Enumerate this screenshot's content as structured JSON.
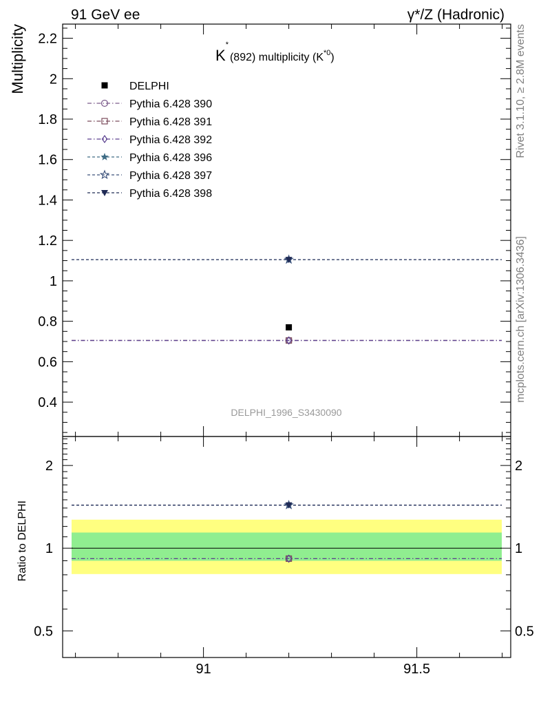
{
  "header": {
    "left": "91 GeV ee",
    "right": "γ*/Z (Hadronic)"
  },
  "side_notes": {
    "rivet": "Rivet 3.1.10, ≥ 2.8M events",
    "mcplots": "mcplots.cern.ch [arXiv:1306.3436]"
  },
  "watermark": "DELPHI_1996_S3430090",
  "chart_data": [
    {
      "type": "scatter",
      "title_main": "K",
      "title_sup": "*",
      "title_rest": "(892) multiplicity (K",
      "title_sup2": "*0",
      "title_end": ")",
      "ylabel": "Multiplicity",
      "xlim": [
        90.67,
        91.72
      ],
      "ylim": [
        0.23,
        2.27
      ],
      "yticks": [
        0.4,
        0.6,
        0.8,
        1,
        1.2,
        1.4,
        1.6,
        1.8,
        2,
        2.2
      ],
      "ytick_labels": [
        "0.4",
        "0.6",
        "0.8",
        "1",
        "1.2",
        "1.4",
        "1.6",
        "1.8",
        "2",
        "2.2"
      ],
      "data": {
        "name": "DELPHI",
        "x": 91.2,
        "y": 0.77,
        "color": "#000000",
        "marker": "square"
      },
      "series": [
        {
          "name": "Pythia 6.428 390",
          "y": 0.705,
          "color": "#7b5a8b",
          "marker": "circle-open",
          "dash": "dashdot"
        },
        {
          "name": "Pythia 6.428 391",
          "y": 0.705,
          "color": "#7a4a5a",
          "marker": "square-open",
          "dash": "dashdot"
        },
        {
          "name": "Pythia 6.428 392",
          "y": 0.705,
          "color": "#5a3f8f",
          "marker": "diamond-open",
          "dash": "dashdot"
        },
        {
          "name": "Pythia 6.428 396",
          "y": 1.105,
          "color": "#3d6b84",
          "marker": "star",
          "dash": "dashed"
        },
        {
          "name": "Pythia 6.428 397",
          "y": 1.105,
          "color": "#3a507a",
          "marker": "star-open",
          "dash": "dashed"
        },
        {
          "name": "Pythia 6.428 398",
          "y": 1.105,
          "color": "#1f2a55",
          "marker": "triangle-down",
          "dash": "dashed"
        }
      ]
    },
    {
      "type": "scatter",
      "ylabel": "Ratio to DELPHI",
      "scale": "log",
      "xlim": [
        90.67,
        91.72
      ],
      "ylim": [
        0.4,
        2.55
      ],
      "yticks": [
        0.5,
        1,
        2
      ],
      "ytick_labels": [
        "0.5",
        "1",
        "2"
      ],
      "xticks": [
        91,
        91.5
      ],
      "xtick_labels": [
        "91",
        "91.5"
      ],
      "bands": [
        {
          "lo": 0.805,
          "hi": 1.27,
          "color": "#ffff80"
        },
        {
          "lo": 0.9,
          "hi": 1.14,
          "color": "#90ee90"
        }
      ],
      "reference": 1,
      "series": [
        {
          "name": "Pythia 6.428 390",
          "y": 0.916,
          "color": "#7b5a8b",
          "marker": "circle-open",
          "dash": "dashdot"
        },
        {
          "name": "Pythia 6.428 391",
          "y": 0.916,
          "color": "#7a4a5a",
          "marker": "square-open",
          "dash": "dashdot"
        },
        {
          "name": "Pythia 6.428 392",
          "y": 0.916,
          "color": "#5a3f8f",
          "marker": "diamond-open",
          "dash": "dashdot"
        },
        {
          "name": "Pythia 6.428 396",
          "y": 1.435,
          "color": "#3d6b84",
          "marker": "star",
          "dash": "dashed"
        },
        {
          "name": "Pythia 6.428 397",
          "y": 1.435,
          "color": "#3a507a",
          "marker": "star-open",
          "dash": "dashed"
        },
        {
          "name": "Pythia 6.428 398",
          "y": 1.435,
          "color": "#1f2a55",
          "marker": "triangle-down",
          "dash": "dashed"
        }
      ]
    }
  ]
}
